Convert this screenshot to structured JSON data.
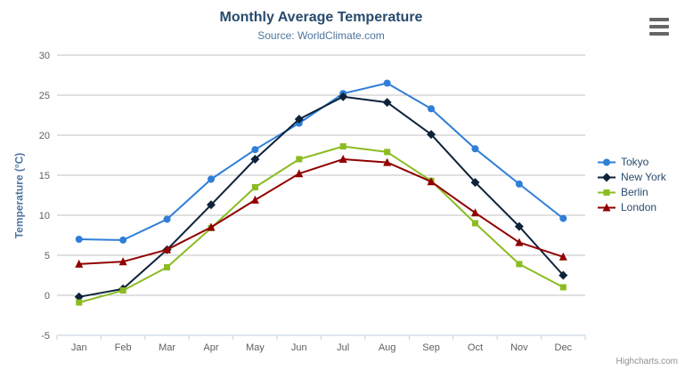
{
  "credits": "Highcharts.com",
  "toolbar": {
    "menu_icon": "hamburger-icon"
  },
  "chart_data": {
    "type": "line",
    "title": "Monthly Average Temperature",
    "subtitle": "Source: WorldClimate.com",
    "xlabel": "",
    "ylabel": "Temperature (°C)",
    "categories": [
      "Jan",
      "Feb",
      "Mar",
      "Apr",
      "May",
      "Jun",
      "Jul",
      "Aug",
      "Sep",
      "Oct",
      "Nov",
      "Dec"
    ],
    "ylim": [
      -5,
      30
    ],
    "yticks": [
      -5,
      0,
      5,
      10,
      15,
      20,
      25,
      30
    ],
    "grid": true,
    "legend_position": "right",
    "axis_colors": {
      "grid_line": "#C0C0C0",
      "axis_line": "#C0D0E0",
      "tick_label": "#606060"
    },
    "series": [
      {
        "name": "Tokyo",
        "color": "#2f7ed8",
        "marker": "circle",
        "values": [
          7.0,
          6.9,
          9.5,
          14.5,
          18.2,
          21.5,
          25.2,
          26.5,
          23.3,
          18.3,
          13.9,
          9.6
        ]
      },
      {
        "name": "New York",
        "color": "#0d233a",
        "marker": "diamond",
        "values": [
          -0.2,
          0.8,
          5.7,
          11.3,
          17.0,
          22.0,
          24.8,
          24.1,
          20.1,
          14.1,
          8.6,
          2.5
        ]
      },
      {
        "name": "Berlin",
        "color": "#8bbc21",
        "marker": "square",
        "values": [
          -0.9,
          0.6,
          3.5,
          8.4,
          13.5,
          17.0,
          18.6,
          17.9,
          14.3,
          9.0,
          3.9,
          1.0
        ]
      },
      {
        "name": "London",
        "color": "#910000",
        "marker": "triangle",
        "values": [
          3.9,
          4.2,
          5.7,
          8.5,
          11.9,
          15.2,
          17.0,
          16.6,
          14.2,
          10.3,
          6.6,
          4.8
        ]
      }
    ]
  }
}
